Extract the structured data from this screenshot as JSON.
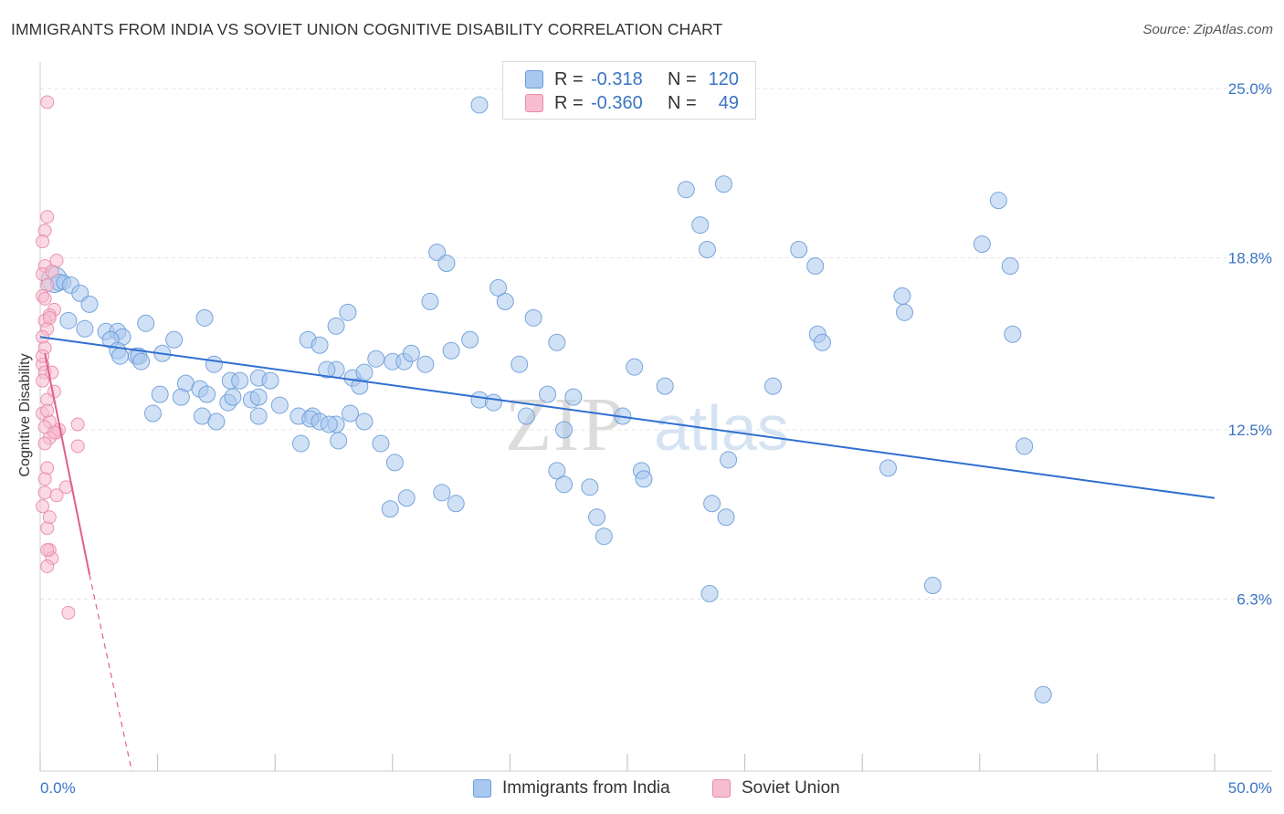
{
  "title": "IMMIGRANTS FROM INDIA VS SOVIET UNION COGNITIVE DISABILITY CORRELATION CHART",
  "source": "Source: ZipAtlas.com",
  "watermark": {
    "zip": "ZIP",
    "atlas": "atlas"
  },
  "legend_stats": [
    {
      "r_label": "R =",
      "r_value": "-0.318",
      "n_label": "N =",
      "n_value": "120",
      "color": "#a9c8ef",
      "border": "#6c9bd8"
    },
    {
      "r_label": "R =",
      "r_value": "-0.360",
      "n_label": "N =",
      "n_value": "49",
      "color": "#f7bcd0",
      "border": "#e88aab"
    }
  ],
  "chart_data": {
    "type": "scatter",
    "ylabel": "Cognitive Disability",
    "xlim": [
      0,
      50
    ],
    "ylim": [
      0,
      26
    ],
    "x_tick_labels": [
      "0.0%",
      "50.0%"
    ],
    "y_ticks": [
      6.3,
      12.5,
      18.8,
      25.0
    ],
    "y_tick_labels": [
      "6.3%",
      "12.5%",
      "18.8%",
      "25.0%"
    ],
    "grid": "horizontal dashed",
    "legend": "bottom-center",
    "series": [
      {
        "name": "Immigrants from India",
        "color": "#a9c8ef",
        "stroke": "#6c9bd8",
        "trend": {
          "x0": 0,
          "y0": 15.9,
          "x1": 50,
          "y1": 10.0,
          "color": "#2f6fd0"
        },
        "points": [
          [
            0.6,
            18.0,
            14
          ],
          [
            0.8,
            17.9,
            9
          ],
          [
            1.0,
            17.9,
            8
          ],
          [
            1.3,
            17.8,
            9
          ],
          [
            1.7,
            17.5,
            9
          ],
          [
            2.1,
            17.1,
            9
          ],
          [
            1.2,
            16.5,
            9
          ],
          [
            1.9,
            16.2,
            9
          ],
          [
            2.8,
            16.1,
            9
          ],
          [
            3.3,
            16.1,
            9
          ],
          [
            3.5,
            15.9,
            9
          ],
          [
            3.0,
            15.8,
            9
          ],
          [
            4.5,
            16.4,
            9
          ],
          [
            5.7,
            15.8,
            9
          ],
          [
            3.3,
            15.4,
            9
          ],
          [
            3.4,
            15.2,
            9
          ],
          [
            4.1,
            15.2,
            9
          ],
          [
            4.2,
            15.2,
            9
          ],
          [
            4.3,
            15.0,
            9
          ],
          [
            5.2,
            15.3,
            9
          ],
          [
            7.0,
            16.6,
            9
          ],
          [
            7.4,
            14.9,
            9
          ],
          [
            8.1,
            14.3,
            9
          ],
          [
            8.5,
            14.3,
            9
          ],
          [
            9.3,
            14.4,
            9
          ],
          [
            9.8,
            14.3,
            9
          ],
          [
            6.2,
            14.2,
            9
          ],
          [
            6.8,
            14.0,
            9
          ],
          [
            5.1,
            13.8,
            9
          ],
          [
            6.0,
            13.7,
            9
          ],
          [
            7.1,
            13.8,
            9
          ],
          [
            8.0,
            13.5,
            9
          ],
          [
            8.2,
            13.7,
            9
          ],
          [
            9.0,
            13.6,
            9
          ],
          [
            9.3,
            13.7,
            9
          ],
          [
            10.2,
            13.4,
            9
          ],
          [
            4.8,
            13.1,
            9
          ],
          [
            6.9,
            13.0,
            9
          ],
          [
            7.5,
            12.8,
            9
          ],
          [
            9.3,
            13.0,
            9
          ],
          [
            11.0,
            13.0,
            9
          ],
          [
            12.6,
            12.7,
            9
          ],
          [
            11.4,
            15.8,
            9
          ],
          [
            11.9,
            15.6,
            9
          ],
          [
            12.6,
            16.3,
            9
          ],
          [
            13.1,
            16.8,
            9
          ],
          [
            12.6,
            14.7,
            9
          ],
          [
            12.2,
            14.7,
            9
          ],
          [
            13.3,
            14.4,
            9
          ],
          [
            13.6,
            14.1,
            9
          ],
          [
            11.6,
            13.0,
            9
          ],
          [
            11.5,
            12.9,
            9
          ],
          [
            11.9,
            12.8,
            9
          ],
          [
            12.3,
            12.7,
            9
          ],
          [
            13.2,
            13.1,
            9
          ],
          [
            13.8,
            12.8,
            9
          ],
          [
            11.1,
            12.0,
            9
          ],
          [
            12.7,
            12.1,
            9
          ],
          [
            13.8,
            14.6,
            9
          ],
          [
            14.3,
            15.1,
            9
          ],
          [
            15.0,
            15.0,
            9
          ],
          [
            15.5,
            15.0,
            9
          ],
          [
            15.8,
            15.3,
            9
          ],
          [
            16.4,
            14.9,
            9
          ],
          [
            14.5,
            12.0,
            9
          ],
          [
            15.1,
            11.3,
            9
          ],
          [
            15.6,
            10.0,
            9
          ],
          [
            14.9,
            9.6,
            9
          ],
          [
            17.1,
            10.2,
            9
          ],
          [
            17.7,
            9.8,
            9
          ],
          [
            16.6,
            17.2,
            9
          ],
          [
            16.9,
            19.0,
            9
          ],
          [
            17.3,
            18.6,
            9
          ],
          [
            17.5,
            15.4,
            9
          ],
          [
            18.3,
            15.8,
            9
          ],
          [
            18.7,
            13.6,
            9
          ],
          [
            19.3,
            13.5,
            9
          ],
          [
            19.5,
            17.7,
            9
          ],
          [
            19.8,
            17.2,
            9
          ],
          [
            20.4,
            14.9,
            9
          ],
          [
            20.7,
            13.0,
            9
          ],
          [
            21.0,
            16.6,
            9
          ],
          [
            21.6,
            13.8,
            9
          ],
          [
            22.0,
            15.7,
            9
          ],
          [
            22.7,
            13.7,
            9
          ],
          [
            22.3,
            12.5,
            9
          ],
          [
            22.0,
            11.0,
            9
          ],
          [
            22.3,
            10.5,
            9
          ],
          [
            24.8,
            13.0,
            9
          ],
          [
            23.7,
            9.3,
            9
          ],
          [
            24.0,
            8.6,
            9
          ],
          [
            25.3,
            14.8,
            9
          ],
          [
            25.6,
            11.0,
            9
          ],
          [
            25.7,
            10.7,
            9
          ],
          [
            26.6,
            14.1,
            9
          ],
          [
            27.5,
            21.3,
            9
          ],
          [
            28.1,
            20.0,
            9
          ],
          [
            28.4,
            19.1,
            9
          ],
          [
            29.1,
            21.5,
            9
          ],
          [
            29.3,
            11.4,
            9
          ],
          [
            29.2,
            9.3,
            9
          ],
          [
            28.5,
            6.5,
            9
          ],
          [
            28.6,
            9.8,
            9
          ],
          [
            31.2,
            14.1,
            9
          ],
          [
            32.3,
            19.1,
            9
          ],
          [
            33.0,
            18.5,
            9
          ],
          [
            33.1,
            16.0,
            9
          ],
          [
            33.3,
            15.7,
            9
          ],
          [
            36.1,
            11.1,
            9
          ],
          [
            36.7,
            17.4,
            9
          ],
          [
            36.8,
            16.8,
            9
          ],
          [
            40.1,
            19.3,
            9
          ],
          [
            41.3,
            18.5,
            9
          ],
          [
            41.4,
            16.0,
            9
          ],
          [
            41.9,
            11.9,
            9
          ],
          [
            42.7,
            2.8,
            9
          ],
          [
            18.7,
            24.4,
            9
          ],
          [
            23.4,
            10.4,
            9
          ],
          [
            40.8,
            20.9,
            9
          ],
          [
            38.0,
            6.8,
            9
          ]
        ]
      },
      {
        "name": "Soviet Union",
        "color": "#f7bcd0",
        "stroke": "#e88aab",
        "trend": {
          "x0": 0.2,
          "y0": 15.3,
          "x1": 2.1,
          "y1": 7.2,
          "color": "#e0608c"
        },
        "trend_ext": {
          "x0": 2.1,
          "y0": 7.2,
          "x1": 3.9,
          "y1": 0.0
        },
        "points": [
          [
            0.3,
            24.5,
            7
          ],
          [
            0.3,
            20.3,
            7
          ],
          [
            0.2,
            19.8,
            7
          ],
          [
            0.1,
            19.4,
            7
          ],
          [
            0.7,
            18.7,
            7
          ],
          [
            0.2,
            18.5,
            7
          ],
          [
            0.1,
            18.2,
            7
          ],
          [
            0.3,
            17.8,
            7
          ],
          [
            0.1,
            17.4,
            7
          ],
          [
            0.6,
            16.9,
            7
          ],
          [
            0.4,
            16.7,
            7
          ],
          [
            0.2,
            16.5,
            7
          ],
          [
            0.3,
            16.2,
            7
          ],
          [
            0.1,
            15.9,
            7
          ],
          [
            0.2,
            15.5,
            7
          ],
          [
            0.1,
            14.9,
            7
          ],
          [
            0.2,
            14.6,
            7
          ],
          [
            0.1,
            14.3,
            7
          ],
          [
            0.6,
            13.9,
            7
          ],
          [
            0.3,
            13.6,
            7
          ],
          [
            0.1,
            13.1,
            7
          ],
          [
            1.6,
            12.7,
            7
          ],
          [
            0.7,
            12.4,
            7
          ],
          [
            0.4,
            12.2,
            7
          ],
          [
            0.2,
            12.0,
            7
          ],
          [
            1.6,
            11.9,
            7
          ],
          [
            0.3,
            11.1,
            7
          ],
          [
            1.1,
            10.4,
            7
          ],
          [
            0.7,
            10.1,
            7
          ],
          [
            0.2,
            10.2,
            7
          ],
          [
            0.1,
            9.7,
            7
          ],
          [
            0.3,
            8.9,
            7
          ],
          [
            0.4,
            8.1,
            7
          ],
          [
            0.5,
            7.8,
            7
          ],
          [
            0.3,
            7.5,
            7
          ],
          [
            1.2,
            5.8,
            7
          ],
          [
            0.5,
            18.3,
            7
          ],
          [
            0.4,
            12.8,
            7
          ],
          [
            0.8,
            12.5,
            7
          ],
          [
            0.2,
            12.6,
            7
          ],
          [
            0.6,
            12.4,
            7
          ],
          [
            0.3,
            13.2,
            7
          ],
          [
            0.4,
            16.6,
            7
          ],
          [
            0.2,
            17.3,
            7
          ],
          [
            0.5,
            14.6,
            7
          ],
          [
            0.4,
            9.3,
            7
          ],
          [
            0.3,
            8.1,
            7
          ],
          [
            0.2,
            10.7,
            7
          ],
          [
            0.1,
            15.2,
            7
          ]
        ]
      }
    ]
  }
}
